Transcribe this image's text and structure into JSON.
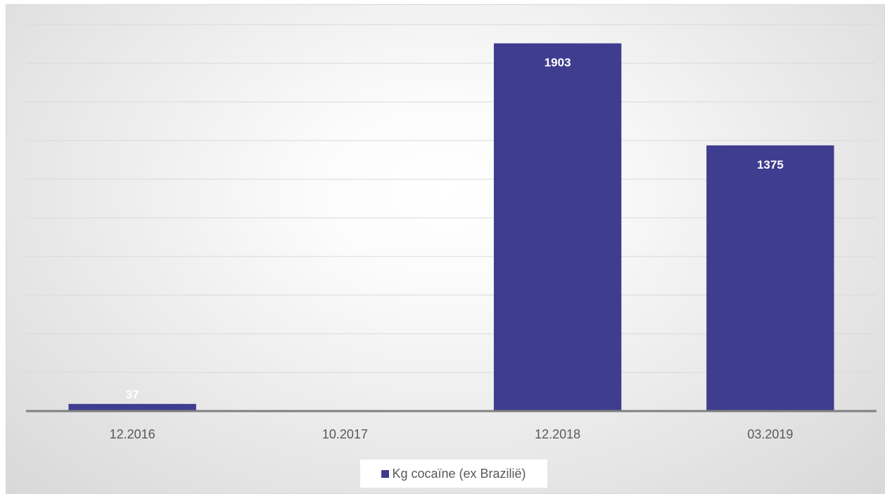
{
  "chart_data": {
    "type": "bar",
    "categories": [
      "12.2016",
      "10.2017",
      "12.2018",
      "03.2019"
    ],
    "series": [
      {
        "name": "Kg cocaïne (ex Brazilië)",
        "values": [
          37,
          5,
          1903,
          1375
        ],
        "data_labels": [
          "37",
          "",
          "1903",
          "1375"
        ],
        "color": "#3f3d8f"
      }
    ],
    "ylim": [
      0,
      2000
    ],
    "grid": true,
    "legend_position": "bottom"
  }
}
